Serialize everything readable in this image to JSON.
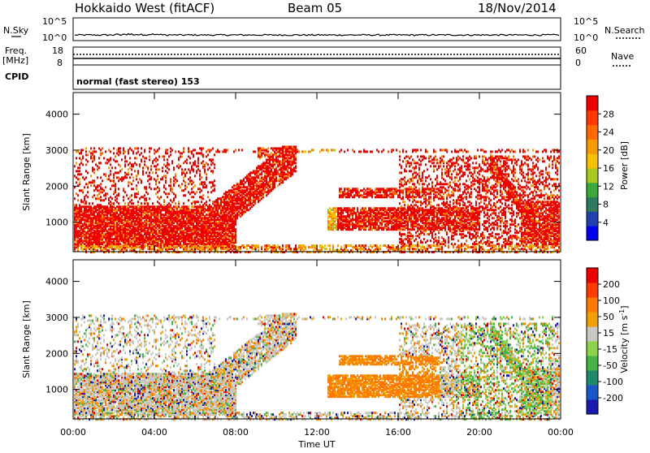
{
  "header": {
    "station": "Hokkaido West (fitACF)",
    "beam": "Beam 05",
    "date": "18/Nov/2014"
  },
  "nsky_panel": {
    "left_label": "N.Sky",
    "right_label": "N.Search",
    "ticks": [
      "10^5",
      "10^0"
    ]
  },
  "freq_panel": {
    "left_label_1": "Freq.",
    "left_label_2": "[MHz]",
    "left_ticks": [
      "18",
      "8"
    ],
    "right_label": "Nave",
    "right_ticks": [
      "60",
      "0"
    ]
  },
  "cpid": {
    "label": "CPID",
    "text": "normal (fast stereo) 153"
  },
  "chart_data": [
    {
      "type": "heatmap",
      "name": "power",
      "ylabel": "Slant Range [km]",
      "y_ticks": [
        "4000",
        "3000",
        "2000",
        "1000"
      ],
      "ylim": [
        180,
        4600
      ],
      "x_ticks": [
        "00:00",
        "04:00",
        "08:00",
        "12:00",
        "16:00",
        "20:00",
        "00:00"
      ],
      "colorbar": {
        "label": "Power [dB]",
        "ticks": [
          "28",
          "24",
          "20",
          "16",
          "12",
          "8",
          "4"
        ],
        "colors": [
          "#0000ee",
          "#2040b0",
          "#2e7a5e",
          "#3aa83a",
          "#a8c820",
          "#f4c000",
          "#f59a00",
          "#ff6a00",
          "#ff3a00",
          "#ee0000"
        ]
      }
    },
    {
      "type": "heatmap",
      "name": "velocity",
      "ylabel": "Slant Range [km]",
      "y_ticks": [
        "4000",
        "3000",
        "2000",
        "1000"
      ],
      "ylim": [
        180,
        4600
      ],
      "x_ticks": [
        "00:00",
        "04:00",
        "08:00",
        "12:00",
        "16:00",
        "20:00",
        "00:00"
      ],
      "xlabel": "Time UT",
      "colorbar": {
        "label": "Velocity [m s-1]",
        "ticks": [
          "200",
          "100",
          "50",
          "15",
          "-15",
          "-50",
          "-100",
          "-200"
        ],
        "colors": [
          "#1a1ab0",
          "#1a56c8",
          "#1f8a6a",
          "#46b446",
          "#8cd24a",
          "#c8c8c0",
          "#f0a000",
          "#ff7800",
          "#ff3c00",
          "#ee0000"
        ]
      }
    }
  ]
}
